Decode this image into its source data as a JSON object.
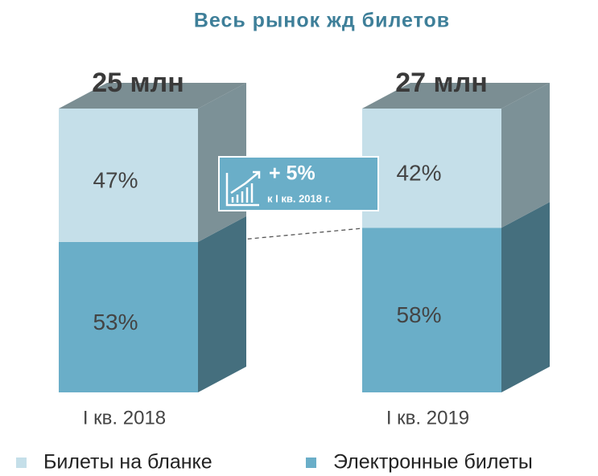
{
  "chart_data": {
    "type": "bar",
    "stacked": true,
    "title": "Весь рынок жд билетов",
    "categories": [
      "I кв. 2018",
      "I кв. 2019"
    ],
    "series": [
      {
        "name": "Электронные билеты",
        "color": "#6aaec8",
        "side_color": "#456f7e",
        "values": [
          53,
          58
        ],
        "value_labels": [
          "53%",
          "58%"
        ]
      },
      {
        "name": "Билеты на бланке",
        "color": "#c5dfe9",
        "side_color": "#7c9197",
        "values": [
          47,
          42
        ],
        "value_labels": [
          "47%",
          "42%"
        ]
      }
    ],
    "totals": {
      "values": [
        25,
        27
      ],
      "value_labels": [
        "25 млн",
        "27 млн"
      ]
    },
    "annotation": {
      "title": "+ 5%",
      "subtitle": "к  I кв. 2018 г."
    }
  }
}
